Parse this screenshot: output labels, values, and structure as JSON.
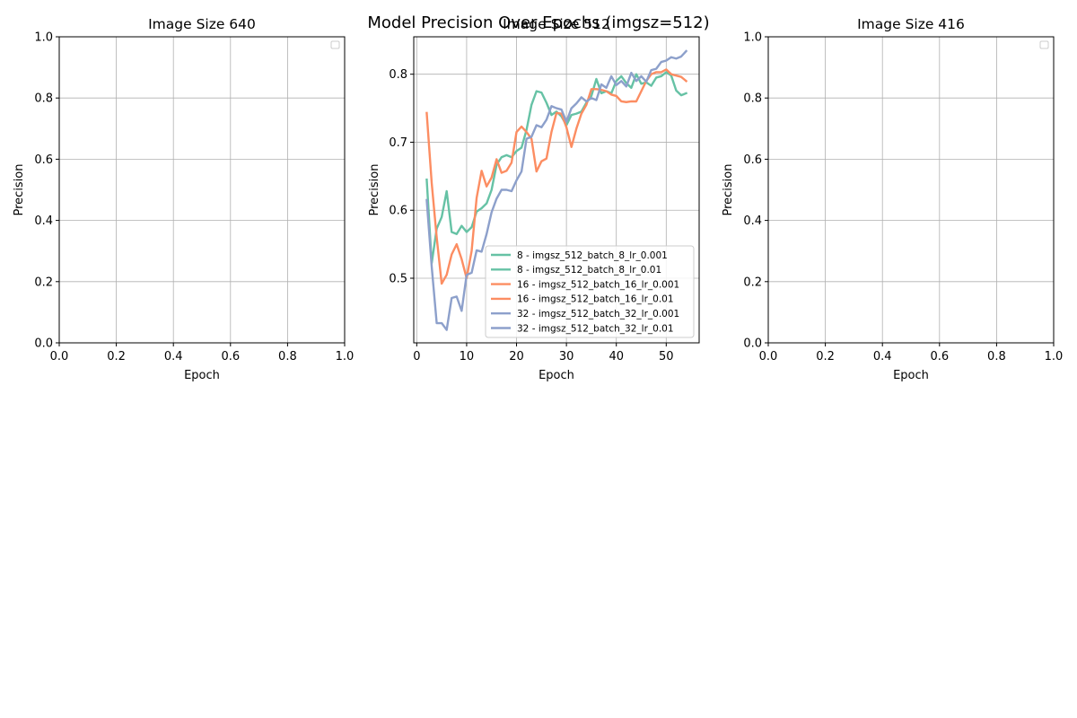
{
  "figure": {
    "title": "Model Precision Over Epochs (imgsz=512)"
  },
  "chart_data": [
    {
      "type": "line",
      "title": "Image Size 640",
      "xlabel": "Epoch",
      "ylabel": "Precision",
      "xlim": [
        0,
        1
      ],
      "ylim": [
        0,
        1
      ],
      "xticks": [
        "0.0",
        "0.2",
        "0.4",
        "0.6",
        "0.8",
        "1.0"
      ],
      "yticks": [
        "0.0",
        "0.2",
        "0.4",
        "0.6",
        "0.8",
        "1.0"
      ],
      "xtick_values": [
        0,
        0.2,
        0.4,
        0.6,
        0.8,
        1.0
      ],
      "ytick_values": [
        0,
        0.2,
        0.4,
        0.6,
        0.8,
        1.0
      ],
      "grid": true,
      "legend": "top-right",
      "series": []
    },
    {
      "type": "line",
      "title": "Image Size 512",
      "xlabel": "Epoch",
      "ylabel": "Precision",
      "xlim": [
        -0.6,
        56.6
      ],
      "ylim": [
        0.405,
        0.855
      ],
      "xticks": [
        "0",
        "10",
        "20",
        "30",
        "40",
        "50"
      ],
      "yticks": [
        "0.5",
        "0.6",
        "0.7",
        "0.8"
      ],
      "xtick_values": [
        0,
        10,
        20,
        30,
        40,
        50
      ],
      "ytick_values": [
        0.5,
        0.6,
        0.7,
        0.8
      ],
      "grid": true,
      "legend": "lower-right",
      "series": [
        {
          "name": "8 - imgsz_512_batch_8_lr_0.001",
          "color": "#66c2a5",
          "x": [
            2,
            3,
            4,
            5,
            6,
            7,
            8,
            9,
            10,
            11,
            12,
            13,
            14,
            15,
            16,
            17,
            18,
            19,
            20,
            21,
            22,
            23,
            24,
            25,
            26,
            27,
            28,
            29,
            30,
            31,
            32,
            33,
            34,
            35,
            36,
            37,
            38,
            39,
            40,
            41,
            42,
            43,
            44,
            45,
            46,
            47,
            48,
            49,
            50,
            51,
            52,
            53,
            54
          ],
          "y": [
            0.645,
            0.522,
            0.573,
            0.59,
            0.628,
            0.568,
            0.565,
            0.577,
            0.568,
            0.575,
            0.598,
            0.603,
            0.61,
            0.63,
            0.667,
            0.678,
            0.681,
            0.678,
            0.687,
            0.692,
            0.718,
            0.755,
            0.775,
            0.773,
            0.758,
            0.74,
            0.745,
            0.738,
            0.725,
            0.74,
            0.742,
            0.745,
            0.758,
            0.768,
            0.793,
            0.772,
            0.775,
            0.772,
            0.79,
            0.797,
            0.787,
            0.78,
            0.8,
            0.786,
            0.788,
            0.783,
            0.795,
            0.797,
            0.803,
            0.798,
            0.776,
            0.769,
            0.772
          ]
        },
        {
          "name": "8 - imgsz_512_batch_8_lr_0.01",
          "color": "#66c2a5",
          "x": [],
          "y": []
        },
        {
          "name": "16 - imgsz_512_batch_16_lr_0.001",
          "color": "#fc8d62",
          "x": [
            2,
            3,
            4,
            5,
            6,
            7,
            8,
            9,
            10,
            11,
            12,
            13,
            14,
            15,
            16,
            17,
            18,
            19,
            20,
            21,
            22,
            23,
            24,
            25,
            26,
            27,
            28,
            29,
            30,
            31,
            32,
            33,
            34,
            35,
            36,
            37,
            38,
            39,
            40,
            41,
            42,
            43,
            44,
            45,
            46,
            47,
            48,
            49,
            50,
            51,
            52,
            53,
            54
          ],
          "y": [
            0.743,
            0.64,
            0.56,
            0.492,
            0.505,
            0.535,
            0.55,
            0.528,
            0.5,
            0.54,
            0.618,
            0.658,
            0.635,
            0.648,
            0.675,
            0.655,
            0.658,
            0.67,
            0.715,
            0.723,
            0.715,
            0.705,
            0.657,
            0.672,
            0.676,
            0.715,
            0.743,
            0.742,
            0.722,
            0.693,
            0.72,
            0.742,
            0.755,
            0.778,
            0.778,
            0.777,
            0.775,
            0.77,
            0.768,
            0.76,
            0.759,
            0.76,
            0.76,
            0.775,
            0.79,
            0.8,
            0.803,
            0.803,
            0.807,
            0.8,
            0.798,
            0.796,
            0.79
          ]
        },
        {
          "name": "16 - imgsz_512_batch_16_lr_0.01",
          "color": "#fc8d62",
          "x": [],
          "y": []
        },
        {
          "name": "32 - imgsz_512_batch_32_lr_0.001",
          "color": "#8da0cb",
          "x": [
            2,
            3,
            4,
            5,
            6,
            7,
            8,
            9,
            10,
            11,
            12,
            13,
            14,
            15,
            16,
            17,
            18,
            19,
            20,
            21,
            22,
            23,
            24,
            25,
            26,
            27,
            28,
            29,
            30,
            31,
            32,
            33,
            34,
            35,
            36,
            37,
            38,
            39,
            40,
            41,
            42,
            43,
            44,
            45,
            46,
            47,
            48,
            49,
            50,
            51,
            52,
            53,
            54
          ],
          "y": [
            0.615,
            0.517,
            0.434,
            0.434,
            0.424,
            0.471,
            0.473,
            0.452,
            0.505,
            0.508,
            0.541,
            0.539,
            0.565,
            0.597,
            0.617,
            0.63,
            0.63,
            0.628,
            0.644,
            0.657,
            0.705,
            0.708,
            0.725,
            0.722,
            0.733,
            0.753,
            0.75,
            0.748,
            0.73,
            0.75,
            0.757,
            0.766,
            0.76,
            0.765,
            0.762,
            0.785,
            0.78,
            0.797,
            0.784,
            0.79,
            0.782,
            0.802,
            0.79,
            0.797,
            0.789,
            0.806,
            0.808,
            0.818,
            0.82,
            0.825,
            0.823,
            0.826,
            0.834
          ]
        },
        {
          "name": "32 - imgsz_512_batch_32_lr_0.01",
          "color": "#8da0cb",
          "x": [],
          "y": []
        }
      ]
    },
    {
      "type": "line",
      "title": "Image Size 416",
      "xlabel": "Epoch",
      "ylabel": "Precision",
      "xlim": [
        0,
        1
      ],
      "ylim": [
        0,
        1
      ],
      "xticks": [
        "0.0",
        "0.2",
        "0.4",
        "0.6",
        "0.8",
        "1.0"
      ],
      "yticks": [
        "0.0",
        "0.2",
        "0.4",
        "0.6",
        "0.8",
        "1.0"
      ],
      "xtick_values": [
        0,
        0.2,
        0.4,
        0.6,
        0.8,
        1.0
      ],
      "ytick_values": [
        0,
        0.2,
        0.4,
        0.6,
        0.8,
        1.0
      ],
      "grid": true,
      "legend": "top-right",
      "series": []
    }
  ]
}
